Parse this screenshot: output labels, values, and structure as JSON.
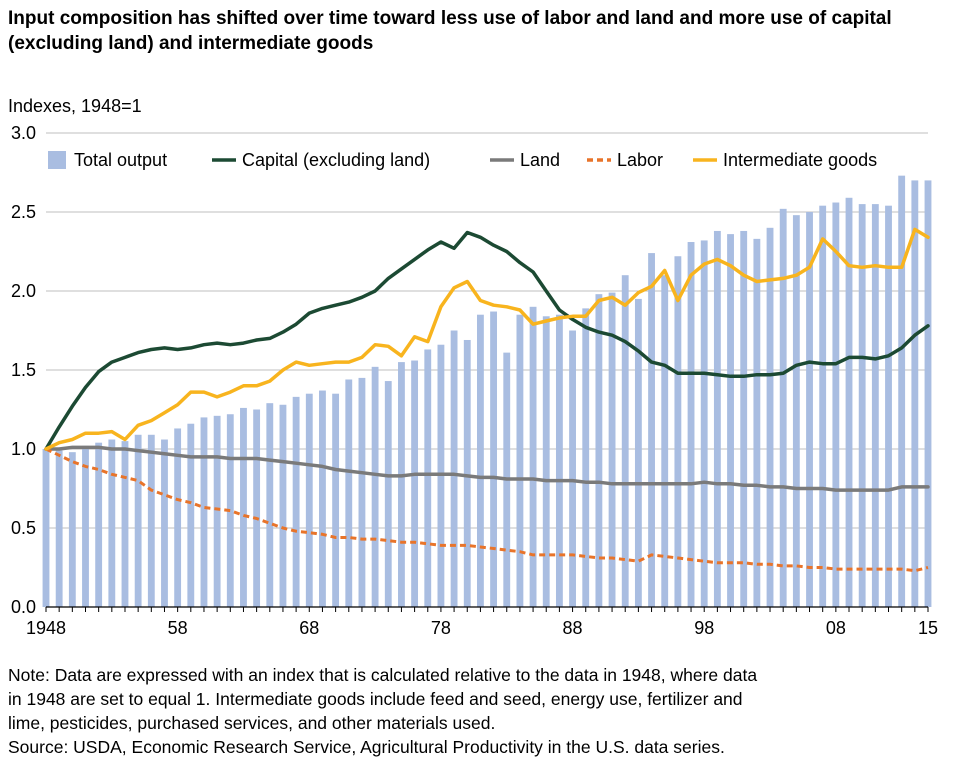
{
  "title": "Input composition has shifted over time toward less use of labor and land and more use of capital (excluding land) and intermediate goods",
  "note_lines": [
    "Note: Data are expressed with an index that is calculated relative to the data in 1948, where data",
    "in 1948 are set to equal 1. Intermediate goods include feed and seed, energy use, fertilizer and",
    "lime, pesticides, purchased services, and other materials used."
  ],
  "source": "Source: USDA, Economic Research Service, Agricultural Productivity in the U.S. data series.",
  "colors": {
    "total_output": "#a9bde1",
    "capital": "#1c4a33",
    "land": "#7a7a7a",
    "labor": "#e8742a",
    "intermediate": "#f8b41e",
    "grid": "#bfbfbf"
  },
  "chart_data": {
    "type": "bar+line",
    "ylabel": "Indexes, 1948=1",
    "ylim": [
      0,
      3.0
    ],
    "yticks": [
      "0.0",
      "0.5",
      "1.0",
      "1.5",
      "2.0",
      "2.5",
      "3.0"
    ],
    "xticks": [
      {
        "year": 1948,
        "label": "1948"
      },
      {
        "year": 1958,
        "label": "58"
      },
      {
        "year": 1968,
        "label": "68"
      },
      {
        "year": 1978,
        "label": "78"
      },
      {
        "year": 1988,
        "label": "88"
      },
      {
        "year": 1998,
        "label": "98"
      },
      {
        "year": 2008,
        "label": "08"
      },
      {
        "year": 2015,
        "label": "15"
      }
    ],
    "grid": true,
    "legend_position": "top",
    "x": [
      1948,
      1949,
      1950,
      1951,
      1952,
      1953,
      1954,
      1955,
      1956,
      1957,
      1958,
      1959,
      1960,
      1961,
      1962,
      1963,
      1964,
      1965,
      1966,
      1967,
      1968,
      1969,
      1970,
      1971,
      1972,
      1973,
      1974,
      1975,
      1976,
      1977,
      1978,
      1979,
      1980,
      1981,
      1982,
      1983,
      1984,
      1985,
      1986,
      1987,
      1988,
      1989,
      1990,
      1991,
      1992,
      1993,
      1994,
      1995,
      1996,
      1997,
      1998,
      1999,
      2000,
      2001,
      2002,
      2003,
      2004,
      2005,
      2006,
      2007,
      2008,
      2009,
      2010,
      2011,
      2012,
      2013,
      2014,
      2015
    ],
    "series": [
      {
        "name": "Total output",
        "kind": "bar",
        "values": [
          1.0,
          0.99,
          0.98,
          1.02,
          1.04,
          1.06,
          1.05,
          1.09,
          1.09,
          1.06,
          1.13,
          1.16,
          1.2,
          1.21,
          1.22,
          1.26,
          1.25,
          1.29,
          1.28,
          1.33,
          1.35,
          1.37,
          1.35,
          1.44,
          1.45,
          1.52,
          1.43,
          1.55,
          1.56,
          1.63,
          1.66,
          1.75,
          1.69,
          1.85,
          1.87,
          1.61,
          1.85,
          1.9,
          1.84,
          1.85,
          1.75,
          1.89,
          1.98,
          1.99,
          2.1,
          1.95,
          2.24,
          2.1,
          2.22,
          2.31,
          2.32,
          2.38,
          2.36,
          2.38,
          2.33,
          2.4,
          2.52,
          2.48,
          2.5,
          2.54,
          2.56,
          2.59,
          2.55,
          2.55,
          2.54,
          2.73,
          2.7,
          2.7
        ]
      },
      {
        "name": "Capital (excluding land)",
        "kind": "line",
        "values": [
          1.0,
          1.14,
          1.27,
          1.39,
          1.49,
          1.55,
          1.58,
          1.61,
          1.63,
          1.64,
          1.63,
          1.64,
          1.66,
          1.67,
          1.66,
          1.67,
          1.69,
          1.7,
          1.74,
          1.79,
          1.86,
          1.89,
          1.91,
          1.93,
          1.96,
          2.0,
          2.08,
          2.14,
          2.2,
          2.26,
          2.31,
          2.27,
          2.37,
          2.34,
          2.29,
          2.25,
          2.18,
          2.12,
          2.0,
          1.88,
          1.82,
          1.77,
          1.74,
          1.72,
          1.68,
          1.62,
          1.55,
          1.53,
          1.48,
          1.48,
          1.48,
          1.47,
          1.46,
          1.46,
          1.47,
          1.47,
          1.48,
          1.53,
          1.55,
          1.54,
          1.54,
          1.58,
          1.58,
          1.57,
          1.59,
          1.64,
          1.72,
          1.78
        ]
      },
      {
        "name": "Land",
        "kind": "line",
        "values": [
          1.0,
          1.0,
          1.01,
          1.01,
          1.01,
          1.0,
          1.0,
          0.99,
          0.98,
          0.97,
          0.96,
          0.95,
          0.95,
          0.95,
          0.94,
          0.94,
          0.94,
          0.93,
          0.92,
          0.91,
          0.9,
          0.89,
          0.87,
          0.86,
          0.85,
          0.84,
          0.83,
          0.83,
          0.84,
          0.84,
          0.84,
          0.84,
          0.83,
          0.82,
          0.82,
          0.81,
          0.81,
          0.81,
          0.8,
          0.8,
          0.8,
          0.79,
          0.79,
          0.78,
          0.78,
          0.78,
          0.78,
          0.78,
          0.78,
          0.78,
          0.79,
          0.78,
          0.78,
          0.77,
          0.77,
          0.76,
          0.76,
          0.75,
          0.75,
          0.75,
          0.74,
          0.74,
          0.74,
          0.74,
          0.74,
          0.76,
          0.76,
          0.76
        ]
      },
      {
        "name": "Labor",
        "kind": "line",
        "dashed": true,
        "values": [
          1.0,
          0.96,
          0.92,
          0.89,
          0.87,
          0.84,
          0.82,
          0.8,
          0.74,
          0.71,
          0.68,
          0.66,
          0.63,
          0.62,
          0.61,
          0.58,
          0.56,
          0.53,
          0.5,
          0.48,
          0.47,
          0.46,
          0.44,
          0.44,
          0.43,
          0.43,
          0.42,
          0.41,
          0.41,
          0.4,
          0.39,
          0.39,
          0.39,
          0.38,
          0.37,
          0.36,
          0.35,
          0.33,
          0.33,
          0.33,
          0.33,
          0.32,
          0.31,
          0.31,
          0.3,
          0.29,
          0.33,
          0.32,
          0.31,
          0.3,
          0.29,
          0.28,
          0.28,
          0.28,
          0.27,
          0.27,
          0.26,
          0.26,
          0.25,
          0.25,
          0.24,
          0.24,
          0.24,
          0.24,
          0.24,
          0.24,
          0.23,
          0.25
        ]
      },
      {
        "name": "Intermediate goods",
        "kind": "line",
        "values": [
          1.0,
          1.04,
          1.06,
          1.1,
          1.1,
          1.11,
          1.06,
          1.15,
          1.18,
          1.23,
          1.28,
          1.36,
          1.36,
          1.33,
          1.36,
          1.4,
          1.4,
          1.43,
          1.5,
          1.55,
          1.53,
          1.54,
          1.55,
          1.55,
          1.58,
          1.66,
          1.65,
          1.59,
          1.71,
          1.68,
          1.9,
          2.02,
          2.06,
          1.94,
          1.91,
          1.9,
          1.88,
          1.79,
          1.81,
          1.83,
          1.84,
          1.84,
          1.94,
          1.96,
          1.91,
          1.99,
          2.03,
          2.13,
          1.94,
          2.1,
          2.17,
          2.2,
          2.16,
          2.1,
          2.06,
          2.07,
          2.08,
          2.1,
          2.15,
          2.33,
          2.25,
          2.16,
          2.15,
          2.16,
          2.15,
          2.15,
          2.39,
          2.34
        ]
      }
    ]
  }
}
